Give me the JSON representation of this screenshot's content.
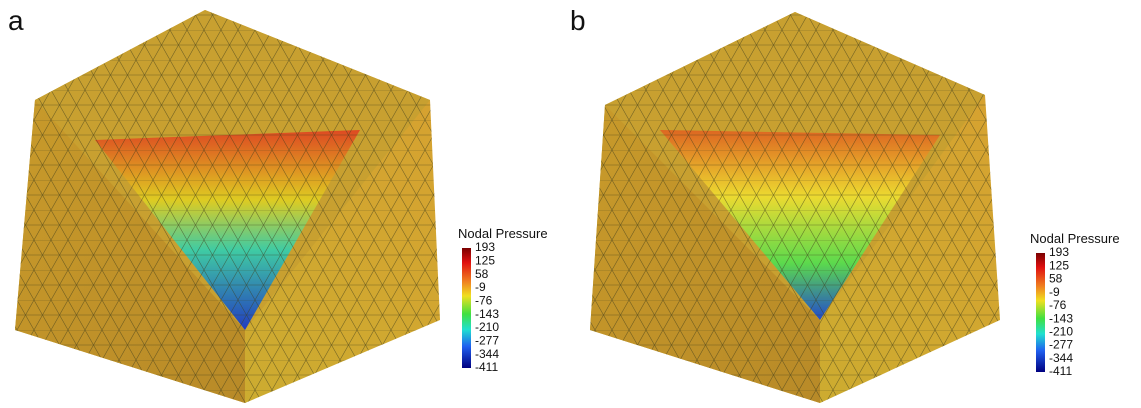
{
  "panels": [
    {
      "label": "a",
      "legend": {
        "title": "Nodal Pressure",
        "ticks": [
          193,
          125,
          58,
          -9,
          -76,
          -143,
          -210,
          -277,
          -344,
          -411
        ]
      }
    },
    {
      "label": "b",
      "legend": {
        "title": "Nodal Pressure",
        "ticks": [
          193,
          125,
          58,
          -9,
          -76,
          -143,
          -210,
          -277,
          -344,
          -411
        ]
      }
    }
  ]
}
